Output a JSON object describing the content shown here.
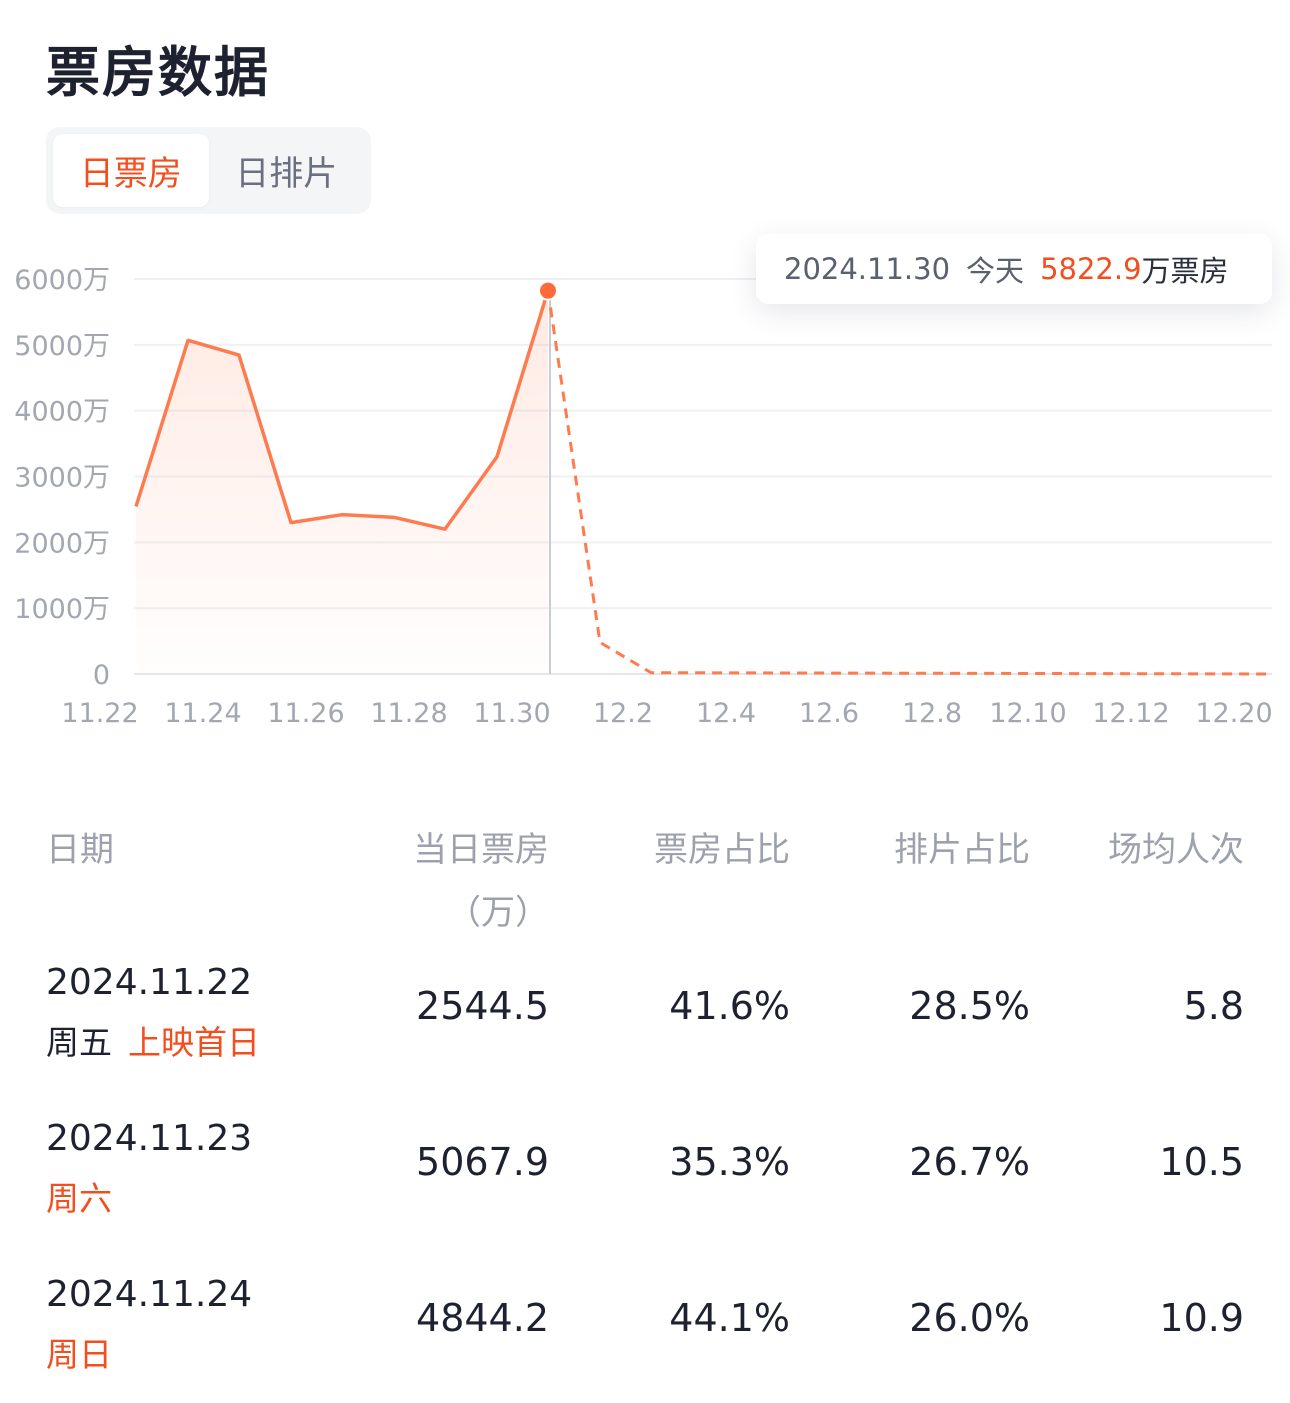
{
  "header": {
    "title": "票房数据"
  },
  "tabs": [
    {
      "label": "日票房",
      "active": true
    },
    {
      "label": "日排片",
      "active": false
    }
  ],
  "tooltip": {
    "date": "2024.11.30",
    "today_label": "今天",
    "value": "5822.9",
    "unit_label": "万票房"
  },
  "colors": {
    "accent": "#f24e1e",
    "line": "#fd7b4e",
    "grid": "#eef0f3"
  },
  "chart_data": {
    "type": "line",
    "yticks": [
      "0",
      "1000万",
      "2000万",
      "3000万",
      "4000万",
      "5000万",
      "6000万"
    ],
    "xticks": [
      "11.22",
      "11.24",
      "11.26",
      "11.28",
      "11.30",
      "12.2",
      "12.4",
      "12.6",
      "12.8",
      "12.10",
      "12.12",
      "12.20"
    ],
    "ylim": [
      0,
      6000
    ],
    "grid": true,
    "series": [
      {
        "x": [
          "11.22",
          "11.23",
          "11.24",
          "11.25",
          "11.26",
          "11.27",
          "11.28",
          "11.29",
          "11.30"
        ],
        "values": [
          2544.5,
          5067.9,
          4844.2,
          2300,
          2420,
          2380,
          2200,
          3300,
          5822.9
        ],
        "style": "solid"
      },
      {
        "x": [
          "11.30",
          "12.1",
          "12.2",
          "12.20"
        ],
        "values": [
          5822.9,
          480,
          20,
          0
        ],
        "style": "dashed"
      }
    ],
    "highlight": {
      "x": "11.30",
      "value": 5822.9
    }
  },
  "table": {
    "headers": {
      "date": "日期",
      "box": "当日票房",
      "box_unit": "（万）",
      "share": "票房占比",
      "screen": "排片占比",
      "avg": "场均人次"
    },
    "rows": [
      {
        "date": "2024.11.22",
        "weekday": "周五",
        "weekday_highlight": false,
        "tag": "上映首日",
        "box": "2544.5",
        "share": "41.6%",
        "screen": "28.5%",
        "avg": "5.8"
      },
      {
        "date": "2024.11.23",
        "weekday": "周六",
        "weekday_highlight": true,
        "tag": "",
        "box": "5067.9",
        "share": "35.3%",
        "screen": "26.7%",
        "avg": "10.5"
      },
      {
        "date": "2024.11.24",
        "weekday": "周日",
        "weekday_highlight": true,
        "tag": "",
        "box": "4844.2",
        "share": "44.1%",
        "screen": "26.0%",
        "avg": "10.9"
      }
    ]
  }
}
